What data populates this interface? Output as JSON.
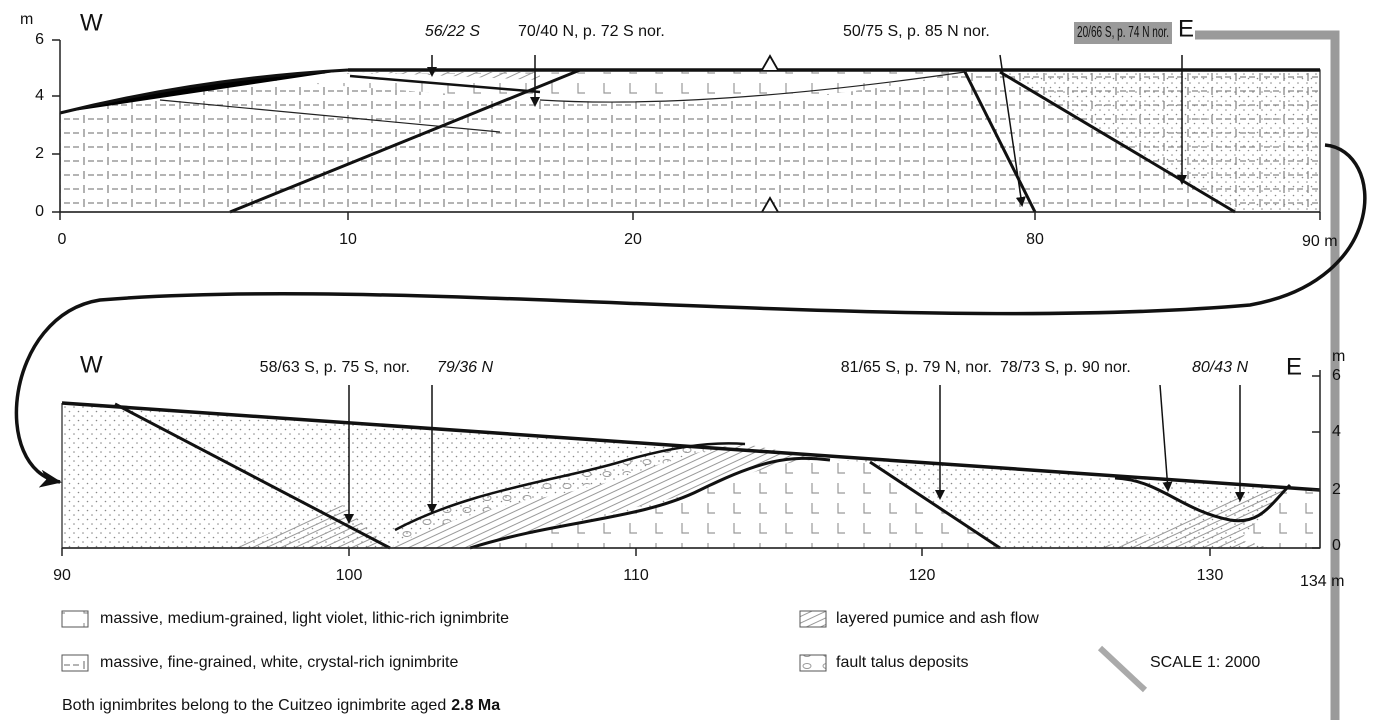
{
  "sections": [
    {
      "axis_unit": "m",
      "west": "W",
      "east": "E",
      "y_ticks": [
        "6",
        "4",
        "2",
        "0"
      ],
      "x_ticks": [
        "0",
        "10",
        "20",
        "80",
        "90 m"
      ],
      "annotations": [
        "56/22 S",
        "70/40 N, p. 72 S nor.",
        "50/75 S, p. 85 N nor.",
        "20/66 S, p. 74 N nor."
      ]
    },
    {
      "axis_unit": "m",
      "west": "W",
      "east": "E",
      "y_ticks": [
        "6",
        "4",
        "2",
        "0"
      ],
      "x_ticks": [
        "90",
        "100",
        "110",
        "120",
        "130",
        "134 m"
      ],
      "annotations": [
        "58/63 S, p. 75 S, nor.",
        "79/36 N",
        "81/65 S, p. 79 N, nor.",
        "78/73 S, p. 90 nor.",
        "80/43 N"
      ]
    }
  ],
  "legend": [
    "massive, medium-grained, light violet, lithic-rich ignimbrite",
    "massive, fine-grained, white, crystal-rich ignimbrite",
    "layered pumice and ash flow",
    "fault talus deposits"
  ],
  "note": {
    "text": "Both ignimbrites belong to the Cuitzeo ignimbrite aged",
    "emphasis": "2.8 Ma"
  },
  "scale": "SCALE 1: 2000"
}
